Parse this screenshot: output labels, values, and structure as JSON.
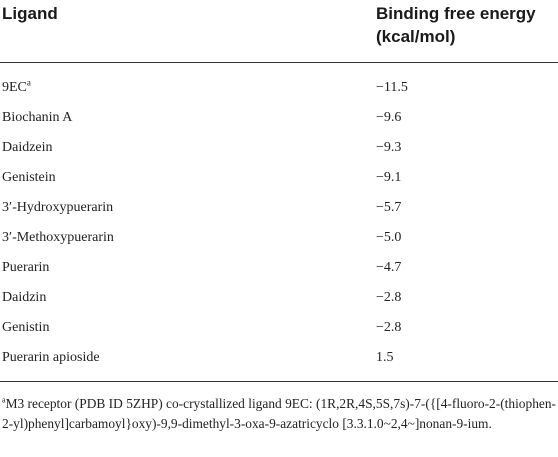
{
  "table": {
    "headers": {
      "ligand": "Ligand",
      "energy_line1": "Binding free energy",
      "energy_line2": "(kcal/mol)"
    },
    "rows": [
      {
        "ligand": "9EC",
        "ligand_sup": "a",
        "energy": "−11.5"
      },
      {
        "ligand": "Biochanin A",
        "energy": "−9.6"
      },
      {
        "ligand": "Daidzein",
        "energy": "−9.3"
      },
      {
        "ligand": "Genistein",
        "energy": "−9.1"
      },
      {
        "ligand": "3′-Hydroxypuerarin",
        "energy": "−5.7"
      },
      {
        "ligand": "3′-Methoxypuerarin",
        "energy": "−5.0"
      },
      {
        "ligand": "Puerarin",
        "energy": "−4.7"
      },
      {
        "ligand": "Daidzin",
        "energy": "−2.8"
      },
      {
        "ligand": "Genistin",
        "energy": "−2.8"
      },
      {
        "ligand": "Puerarin apioside",
        "energy": "1.5"
      }
    ]
  },
  "footnote": {
    "marker": "a",
    "text": "M3 receptor (PDB ID 5ZHP) co-crystallized ligand 9EC: (1R,2R,4S,5S,7s)-7-({[4-fluoro-2-(thiophen-2-yl)phenyl]carbamoyl}oxy)-9,9-dimethyl-3-oxa-9-azatricyclo [3.3.1.0~2,4~]nonan-9-ium."
  }
}
